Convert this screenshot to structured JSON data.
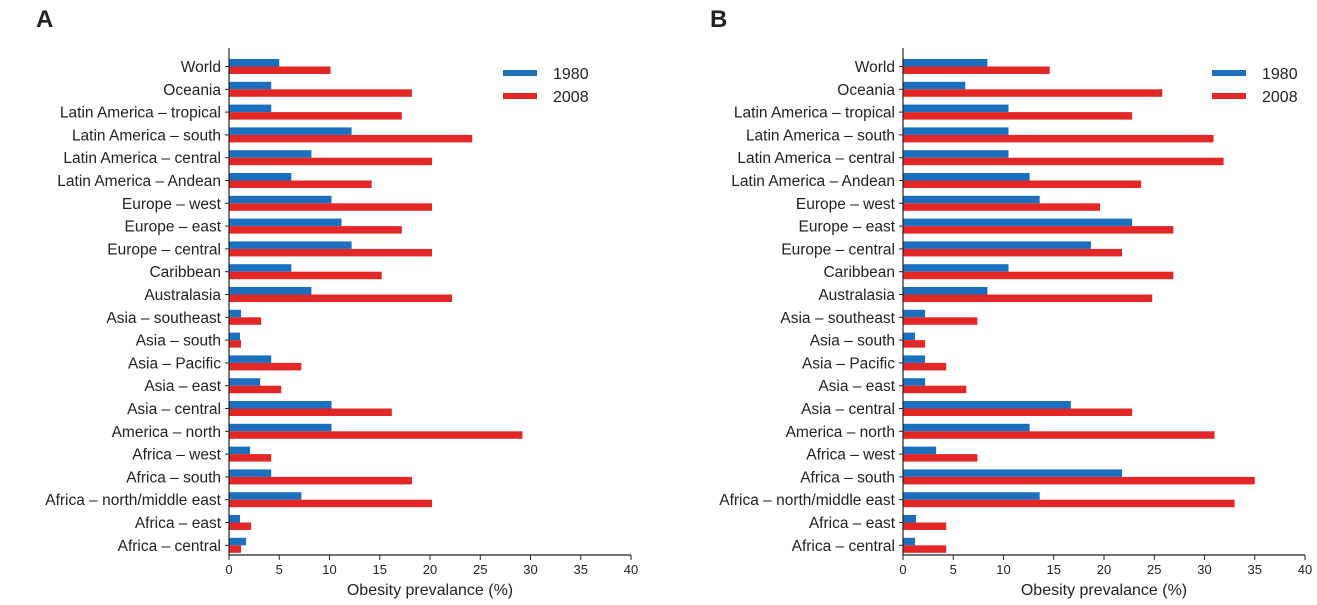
{
  "colors": {
    "y1980": "#1a6fbf",
    "y2008": "#e32727",
    "axis": "#222222"
  },
  "chart_data": [
    {
      "panel": "A",
      "type": "bar",
      "orientation": "horizontal",
      "categories": [
        "World",
        "Oceania",
        "Latin America – tropical",
        "Latin America – south",
        "Latin America – central",
        "Latin America – Andean",
        "Europe – west",
        "Europe – east",
        "Europe – central",
        "Caribbean",
        "Australasia",
        "Asia – southeast",
        "Asia – south",
        "Asia – Pacific",
        "Asia – east",
        "Asia – central",
        "America – north",
        "Africa – west",
        "Africa – south",
        "Africa – north/middle east",
        "Africa – east",
        "Africa – central"
      ],
      "series": [
        {
          "name": "1980",
          "values": [
            5,
            4.2,
            4.2,
            12.2,
            8.2,
            6.2,
            10.2,
            11.2,
            12.2,
            6.2,
            8.2,
            1.2,
            1.1,
            4.2,
            3.1,
            10.2,
            10.2,
            2.1,
            4.2,
            7.2,
            1.1,
            1.7
          ]
        },
        {
          "name": "2008",
          "values": [
            10.1,
            18.2,
            17.2,
            24.2,
            20.2,
            14.2,
            20.2,
            17.2,
            20.2,
            15.2,
            22.2,
            3.2,
            1.2,
            7.2,
            5.2,
            16.2,
            29.2,
            4.2,
            18.2,
            20.2,
            2.2,
            1.2
          ]
        }
      ],
      "xlabel": "Obesity prevalance (%)",
      "xlim": [
        0,
        40
      ],
      "xticks": [
        "0",
        "5",
        "10",
        "15",
        "20",
        "25",
        "30",
        "35",
        "40"
      ],
      "legend": "top-right",
      "grid": false
    },
    {
      "panel": "B",
      "type": "bar",
      "orientation": "horizontal",
      "categories": [
        "World",
        "Oceania",
        "Latin America – tropical",
        "Latin America – south",
        "Latin America – central",
        "Latin America – Andean",
        "Europe – west",
        "Europe – east",
        "Europe – central",
        "Caribbean",
        "Australasia",
        "Asia – southeast",
        "Asia – south",
        "Asia – Pacific",
        "Asia – east",
        "Asia – central",
        "America – north",
        "Africa – west",
        "Africa – south",
        "Africa – north/middle east",
        "Africa – east",
        "Africa – central"
      ],
      "series": [
        {
          "name": "1980",
          "values": [
            8.4,
            6.2,
            10.5,
            10.5,
            10.5,
            12.6,
            13.6,
            22.8,
            18.7,
            10.5,
            8.4,
            2.2,
            1.2,
            2.2,
            2.2,
            16.7,
            12.6,
            3.3,
            21.8,
            13.6,
            1.3,
            1.2
          ]
        },
        {
          "name": "2008",
          "values": [
            14.6,
            25.8,
            22.8,
            30.9,
            31.9,
            23.7,
            19.6,
            26.9,
            21.8,
            26.9,
            24.8,
            7.4,
            2.2,
            4.3,
            6.3,
            22.8,
            31.0,
            7.4,
            35.0,
            33.0,
            4.3,
            4.3
          ]
        }
      ],
      "xlabel": "Obesity prevalance (%)",
      "xlim": [
        0,
        40
      ],
      "xticks": [
        "0",
        "5",
        "10",
        "15",
        "20",
        "25",
        "30",
        "35",
        "40"
      ],
      "legend": "top-right",
      "grid": false
    }
  ]
}
